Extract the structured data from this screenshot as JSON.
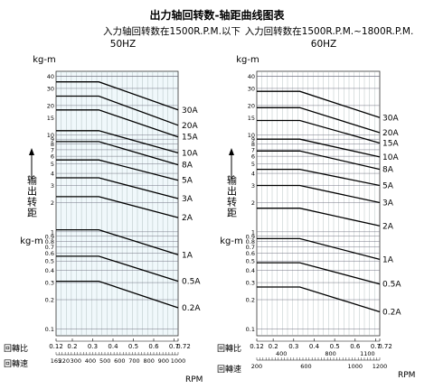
{
  "page": {
    "title": "出力轴回转数-轴距曲线图表"
  },
  "chart_data": [
    {
      "type": "line",
      "subtitle": "入力轴回转数在1500R.P.M.以下",
      "frequency": "50HZ",
      "ylabel_unit": "kg-m",
      "ylabel_text": "输出转距",
      "ylabel_unit_bottom": "kg-m",
      "y_scale": "log",
      "y_ticks": [
        "40",
        "30",
        "20",
        "15",
        "10",
        "9",
        "8",
        "7",
        "6",
        "5",
        "4",
        "3",
        "2",
        "1",
        "0.9",
        "0.8",
        "0.7",
        "0.6",
        "0.5",
        "0.4",
        "0.3",
        "0.2",
        "0.1"
      ],
      "x_row1_label": "回轉比",
      "x_row1_ticks": [
        "0.12",
        "0.2",
        "0.3",
        "0.4",
        "0.5",
        "0.6",
        "0.7",
        "0.72"
      ],
      "x_row2_label": "回轉速",
      "x_row2_ticks": [
        "165",
        "220",
        "300",
        "400",
        "500",
        "600",
        "700",
        "800",
        "900",
        "1000"
      ],
      "x_unit": "RPM",
      "grid": true,
      "series": [
        {
          "name": "30A",
          "x": [
            0.12,
            0.33,
            0.72
          ],
          "y": [
            35,
            35,
            18
          ]
        },
        {
          "name": "20A",
          "x": [
            0.12,
            0.33,
            0.72
          ],
          "y": [
            25,
            25,
            12.5
          ]
        },
        {
          "name": "15A",
          "x": [
            0.12,
            0.33,
            0.72
          ],
          "y": [
            18,
            18,
            9.5
          ]
        },
        {
          "name": "10A",
          "x": [
            0.12,
            0.33,
            0.72
          ],
          "y": [
            11,
            11,
            6.5
          ]
        },
        {
          "name": "8A",
          "x": [
            0.12,
            0.33,
            0.72
          ],
          "y": [
            8.5,
            8.5,
            4.9
          ]
        },
        {
          "name": "5A",
          "x": [
            0.12,
            0.33,
            0.72
          ],
          "y": [
            5.5,
            5.5,
            3.4
          ]
        },
        {
          "name": "3A",
          "x": [
            0.12,
            0.33,
            0.72
          ],
          "y": [
            3.6,
            3.6,
            2.2
          ]
        },
        {
          "name": "2A",
          "x": [
            0.12,
            0.33,
            0.72
          ],
          "y": [
            2.3,
            2.3,
            1.4
          ]
        },
        {
          "name": "1A",
          "x": [
            0.12,
            0.33,
            0.72
          ],
          "y": [
            1.05,
            1.05,
            0.58
          ]
        },
        {
          "name": "0.5A",
          "x": [
            0.12,
            0.33,
            0.72
          ],
          "y": [
            0.56,
            0.56,
            0.31
          ]
        },
        {
          "name": "0.2A",
          "x": [
            0.12,
            0.33,
            0.72
          ],
          "y": [
            0.31,
            0.31,
            0.165
          ]
        }
      ]
    },
    {
      "type": "line",
      "subtitle": "入力回转数在1500R.P.M.~1800R.P.M.",
      "frequency": "60HZ",
      "ylabel_unit": "kg-m",
      "ylabel_text": "输出转距",
      "ylabel_unit_bottom": "kg-m",
      "y_scale": "log",
      "y_ticks": [
        "40",
        "30",
        "20",
        "15",
        "10",
        "9",
        "8",
        "7",
        "6",
        "5",
        "4",
        "3",
        "2",
        "1",
        "0.9",
        "0.8",
        "0.7",
        "0.6",
        "0.5",
        "0.4",
        "0.3",
        "0.2",
        "0.1"
      ],
      "x_row1_label": "回轉比",
      "x_row1_ticks": [
        "0.12",
        "0.2",
        "0.3",
        "0.4",
        "0.5",
        "0.6",
        "0.7",
        "0.72"
      ],
      "x_row2_label": "回轉速",
      "x_row2_ticks": [
        "200",
        "400",
        "600",
        "800",
        "1000",
        "1100",
        "1200"
      ],
      "x_unit": "RPM",
      "grid": true,
      "series": [
        {
          "name": "30A",
          "x": [
            0.12,
            0.33,
            0.72
          ],
          "y": [
            28,
            28,
            15
          ]
        },
        {
          "name": "20A",
          "x": [
            0.12,
            0.33,
            0.72
          ],
          "y": [
            19,
            19,
            10.5
          ]
        },
        {
          "name": "15A",
          "x": [
            0.12,
            0.33,
            0.72
          ],
          "y": [
            14,
            14,
            8.2
          ]
        },
        {
          "name": "10A",
          "x": [
            0.12,
            0.33,
            0.72
          ],
          "y": [
            9,
            9,
            5.9
          ]
        },
        {
          "name": "8A",
          "x": [
            0.12,
            0.33,
            0.72
          ],
          "y": [
            6.8,
            6.8,
            4.4
          ]
        },
        {
          "name": "5A",
          "x": [
            0.12,
            0.33,
            0.72
          ],
          "y": [
            4.4,
            4.4,
            3.0
          ]
        },
        {
          "name": "3A",
          "x": [
            0.12,
            0.33,
            0.72
          ],
          "y": [
            3.0,
            3.0,
            2.0
          ]
        },
        {
          "name": "2A",
          "x": [
            0.12,
            0.33,
            0.72
          ],
          "y": [
            1.75,
            1.75,
            1.15
          ]
        },
        {
          "name": "1A",
          "x": [
            0.12,
            0.33,
            0.72
          ],
          "y": [
            0.85,
            0.85,
            0.52
          ]
        },
        {
          "name": "0.5A",
          "x": [
            0.12,
            0.33,
            0.72
          ],
          "y": [
            0.48,
            0.48,
            0.29
          ]
        },
        {
          "name": "0.2A",
          "x": [
            0.12,
            0.33,
            0.72
          ],
          "y": [
            0.27,
            0.27,
            0.15
          ]
        }
      ]
    }
  ]
}
